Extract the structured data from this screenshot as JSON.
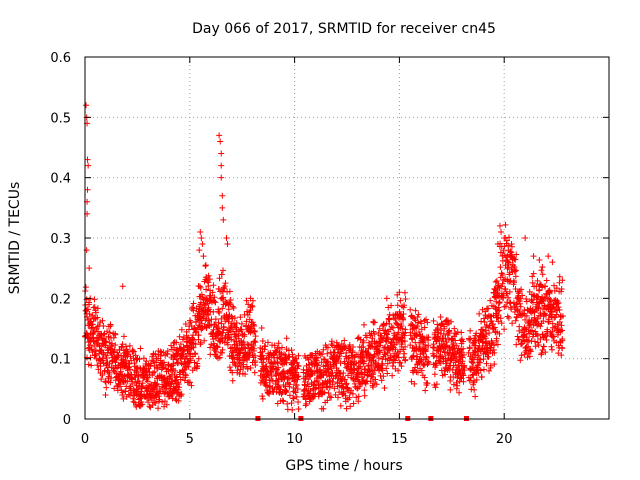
{
  "chart_data": {
    "type": "scatter",
    "title": "Day 066 of 2017, SRMTID for receiver cn45",
    "xlabel": "GPS time / hours",
    "ylabel": "SRMTID / TECUs",
    "xlim": [
      0,
      25
    ],
    "ylim": [
      0,
      0.6
    ],
    "xticks": [
      0,
      5,
      10,
      15,
      20
    ],
    "yticks": [
      0,
      0.1,
      0.2,
      0.3,
      0.4,
      0.5,
      0.6
    ],
    "xtick_labels": [
      "0",
      "5",
      "10",
      "15",
      "20"
    ],
    "ytick_labels": [
      "0",
      "0.1",
      "0.2",
      "0.3",
      "0.4",
      "0.5",
      "0.6"
    ],
    "grid": true,
    "marker": "+",
    "series": [
      {
        "name": "SRMTID",
        "color": "#ff0000",
        "trend": [
          [
            0.0,
            0.16
          ],
          [
            0.3,
            0.14
          ],
          [
            0.6,
            0.13
          ],
          [
            1.0,
            0.1
          ],
          [
            1.5,
            0.09
          ],
          [
            2.0,
            0.08
          ],
          [
            2.5,
            0.06
          ],
          [
            3.0,
            0.06
          ],
          [
            3.5,
            0.065
          ],
          [
            4.0,
            0.07
          ],
          [
            4.5,
            0.08
          ],
          [
            5.0,
            0.11
          ],
          [
            5.5,
            0.16
          ],
          [
            5.8,
            0.2
          ],
          [
            6.2,
            0.15
          ],
          [
            6.6,
            0.18
          ],
          [
            7.0,
            0.13
          ],
          [
            7.5,
            0.12
          ],
          [
            8.0,
            0.14
          ],
          [
            8.2,
            0.1
          ],
          [
            8.6,
            0.08
          ],
          [
            9.0,
            0.08
          ],
          [
            9.5,
            0.08
          ],
          [
            10.0,
            0.07
          ],
          [
            10.5,
            0.06
          ],
          [
            11.0,
            0.07
          ],
          [
            11.5,
            0.075
          ],
          [
            12.0,
            0.08
          ],
          [
            12.5,
            0.075
          ],
          [
            13.0,
            0.08
          ],
          [
            13.5,
            0.1
          ],
          [
            14.0,
            0.11
          ],
          [
            14.5,
            0.12
          ],
          [
            15.0,
            0.14
          ],
          [
            15.5,
            0.13
          ],
          [
            16.0,
            0.11
          ],
          [
            16.5,
            0.11
          ],
          [
            17.0,
            0.12
          ],
          [
            17.5,
            0.11
          ],
          [
            18.0,
            0.09
          ],
          [
            18.5,
            0.1
          ],
          [
            19.0,
            0.12
          ],
          [
            19.5,
            0.16
          ],
          [
            19.9,
            0.23
          ],
          [
            20.3,
            0.25
          ],
          [
            20.7,
            0.17
          ],
          [
            21.0,
            0.15
          ],
          [
            21.5,
            0.19
          ],
          [
            22.0,
            0.18
          ],
          [
            22.5,
            0.17
          ],
          [
            22.8,
            0.16
          ]
        ],
        "scatter_spread": 0.05,
        "gaps": [
          [
            8.15,
            8.35
          ],
          [
            10.2,
            10.4
          ],
          [
            15.3,
            15.5
          ],
          [
            16.4,
            16.6
          ],
          [
            18.1,
            18.3
          ]
        ],
        "spikes": [
          [
            0.05,
            0.52
          ],
          [
            0.08,
            0.5
          ],
          [
            0.1,
            0.49
          ],
          [
            0.12,
            0.43
          ],
          [
            0.15,
            0.42
          ],
          [
            0.12,
            0.38
          ],
          [
            0.1,
            0.36
          ],
          [
            0.1,
            0.34
          ],
          [
            0.2,
            0.25
          ],
          [
            0.08,
            0.28
          ],
          [
            6.4,
            0.47
          ],
          [
            6.45,
            0.46
          ],
          [
            6.5,
            0.44
          ],
          [
            6.5,
            0.42
          ],
          [
            6.5,
            0.4
          ],
          [
            6.55,
            0.37
          ],
          [
            6.55,
            0.35
          ],
          [
            6.6,
            0.33
          ],
          [
            6.75,
            0.3
          ],
          [
            6.8,
            0.29
          ],
          [
            5.5,
            0.31
          ],
          [
            5.55,
            0.3
          ],
          [
            5.6,
            0.29
          ],
          [
            5.45,
            0.28
          ],
          [
            5.65,
            0.27
          ],
          [
            19.8,
            0.32
          ],
          [
            19.85,
            0.31
          ],
          [
            20.0,
            0.3
          ],
          [
            20.05,
            0.3
          ],
          [
            21.0,
            0.3
          ],
          [
            21.4,
            0.27
          ],
          [
            22.1,
            0.27
          ],
          [
            22.3,
            0.26
          ],
          [
            19.7,
            0.29
          ],
          [
            20.2,
            0.28
          ],
          [
            0.2,
            0.19
          ],
          [
            1.8,
            0.22
          ],
          [
            7.9,
            0.2
          ],
          [
            14.4,
            0.2
          ],
          [
            15.0,
            0.21
          ]
        ]
      }
    ]
  }
}
